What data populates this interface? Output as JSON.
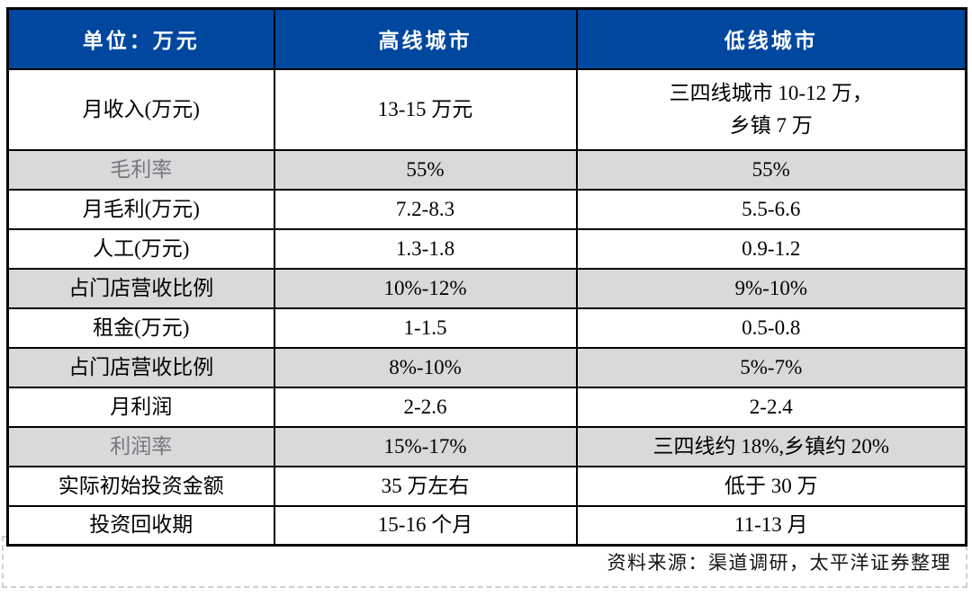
{
  "table": {
    "unit_label": "单位：万元",
    "columns": [
      {
        "label": "高线城市"
      },
      {
        "label": "低线城市"
      }
    ],
    "rows": [
      {
        "label": "月收入(万元)",
        "high": "13-15 万元",
        "low": "三四线城市 10-12 万，\n乡镇 7 万",
        "shaded": false,
        "label_muted": false
      },
      {
        "label": "毛利率",
        "high": "55%",
        "low": "55%",
        "shaded": true,
        "label_muted": true
      },
      {
        "label": "月毛利(万元)",
        "high": "7.2-8.3",
        "low": "5.5-6.6",
        "shaded": false,
        "label_muted": false
      },
      {
        "label": "人工(万元)",
        "high": "1.3-1.8",
        "low": "0.9-1.2",
        "shaded": false,
        "label_muted": false
      },
      {
        "label": "占门店营收比例",
        "high": "10%-12%",
        "low": "9%-10%",
        "shaded": true,
        "label_muted": false
      },
      {
        "label": "租金(万元)",
        "high": "1-1.5",
        "low": "0.5-0.8",
        "shaded": false,
        "label_muted": false
      },
      {
        "label": "占门店营收比例",
        "high": "8%-10%",
        "low": "5%-7%",
        "shaded": true,
        "label_muted": false
      },
      {
        "label": "月利润",
        "high": "2-2.6",
        "low": "2-2.4",
        "shaded": false,
        "label_muted": false
      },
      {
        "label": "利润率",
        "high": "15%-17%",
        "low": "三四线约 18%,乡镇约 20%",
        "shaded": true,
        "label_muted": true
      },
      {
        "label": "实际初始投资金额",
        "high": "35 万左右",
        "low": "低于 30 万",
        "shaded": false,
        "label_muted": false
      },
      {
        "label": "投资回收期",
        "high": "15-16 个月",
        "low": "11-13 月",
        "shaded": false,
        "label_muted": false
      }
    ]
  },
  "footer": {
    "source": "资料来源：渠道调研，太平洋证券整理"
  },
  "colors": {
    "header_bg": "#0047A0",
    "header_text": "#FFFFFF",
    "shaded_row_bg": "#D9D9D9",
    "muted_label_text": "#76767F",
    "grid_border": "#000000",
    "dashed_frame_border": "#CFCFCF"
  }
}
